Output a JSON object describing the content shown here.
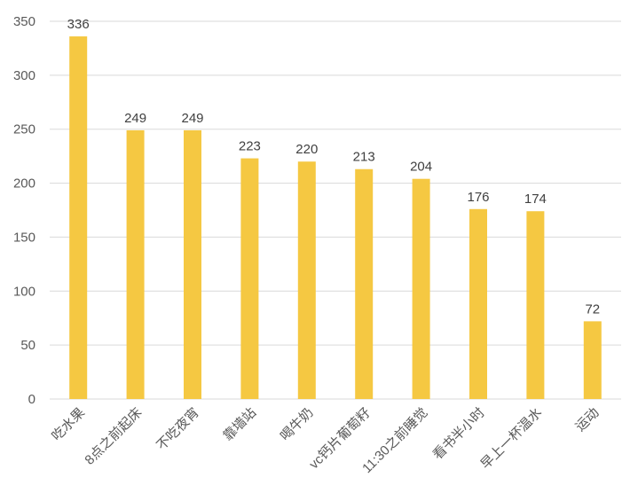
{
  "chart_data": {
    "type": "bar",
    "categories": [
      "吃水果",
      "8点之前起床",
      "不吃夜宵",
      "靠墙站",
      "喝牛奶",
      "vc钙片葡萄籽",
      "11:30之前睡觉",
      "看书半小时",
      "早上一杯温水",
      "运动"
    ],
    "values": [
      336,
      249,
      249,
      223,
      220,
      213,
      204,
      176,
      174,
      72
    ],
    "title": "",
    "xlabel": "",
    "ylabel": "",
    "ylim": [
      0,
      350
    ],
    "yticks": [
      0,
      50,
      100,
      150,
      200,
      250,
      300,
      350
    ],
    "grid": true,
    "legend": "none",
    "data_labels": true,
    "bar_color": "#F5C842",
    "grid_color": "#D9D9D9"
  }
}
